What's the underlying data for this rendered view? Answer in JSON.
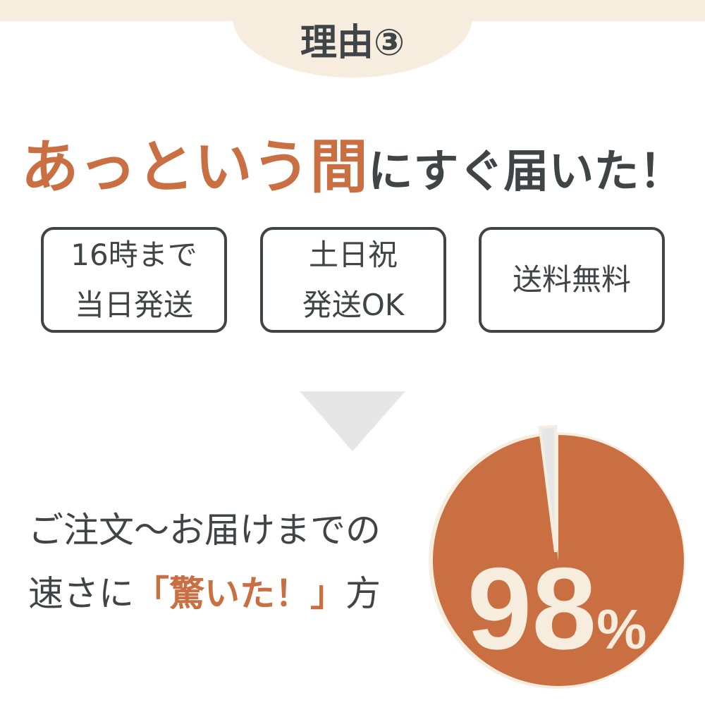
{
  "header": {
    "tab_label": "理由③"
  },
  "headline": {
    "accent": "あっという間",
    "rest": "にすぐ届いた！"
  },
  "features": [
    {
      "line1": "16時まで",
      "line2": "当日発送"
    },
    {
      "line1": "土日祝",
      "line2": "発送OK"
    },
    {
      "line1": "送料無料",
      "line2": ""
    }
  ],
  "statement": {
    "line1": "ご注文〜お届けまでの",
    "line2_pre": "速さに",
    "line2_accent": "「驚いた！」",
    "line2_post": "方"
  },
  "colors": {
    "accent": "#c96f42",
    "text": "#3f4447",
    "beige": "#f6eddf",
    "gray": "#e6e6e6"
  },
  "chart_data": {
    "type": "pie",
    "values": [
      98,
      2
    ],
    "label": "98",
    "unit": "%"
  }
}
